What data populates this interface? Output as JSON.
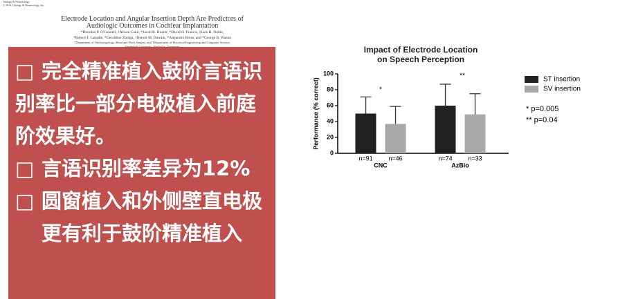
{
  "header": {
    "journal": "Otology & Neurotology",
    "copyright": "© 2016, Otology & Neurotology, Inc.",
    "title_lines": [
      "Electrode Location and Angular Insertion Depth Are Predictors of",
      "Audiologic Outcomes in Cochlear Implantation"
    ],
    "author_lines": [
      "*Brendan P. O'Connell, †Alison Cakir, *Jacob B. Hunter, *David O. Francis, ‡Jack H. Noble,",
      "*Robert F. Labadie, *Geraldine Zuniga, †Benoit M. Dawant, *Alejandro Rivas, and *George B. Wanna"
    ],
    "affiliation_lines": [
      "*Department of Otolaryngology–Head and Neck Surgery, and †Department of Electrical Engineering and Computer Science,",
      "Vanderbilt University, Nashville, Tennessee"
    ]
  },
  "bullets": [
    "完全精准植入鼓阶言语识别率比一部分电极植入前庭阶效果好。",
    "言语识别率差异为12%",
    "圆窗植入和外侧壁直电极更有利于鼓阶精准植入"
  ],
  "chart_data": {
    "type": "bar",
    "title_lines": [
      "Impact of Electrode Location",
      "on Speech Perception"
    ],
    "y_label": "Performance (% correct)",
    "categories": [
      "CNC",
      "AzBio"
    ],
    "ylim": [
      0,
      100
    ],
    "yticks": [
      0,
      20,
      40,
      60,
      80,
      100
    ],
    "series": [
      {
        "name": "ST insertion",
        "color": "#222222",
        "values": [
          50,
          60
        ],
        "errors": [
          21,
          27
        ],
        "n_labels": [
          "n=91",
          "n=74"
        ]
      },
      {
        "name": "SV insertion",
        "color": "#a9a9a9",
        "values": [
          37,
          49
        ],
        "errors": [
          22,
          26
        ],
        "n_labels": [
          "n=46",
          "n=33"
        ]
      }
    ],
    "significance": [
      "*",
      "**"
    ],
    "annotations": [
      "* p=0.005",
      "** p=0.04"
    ]
  }
}
